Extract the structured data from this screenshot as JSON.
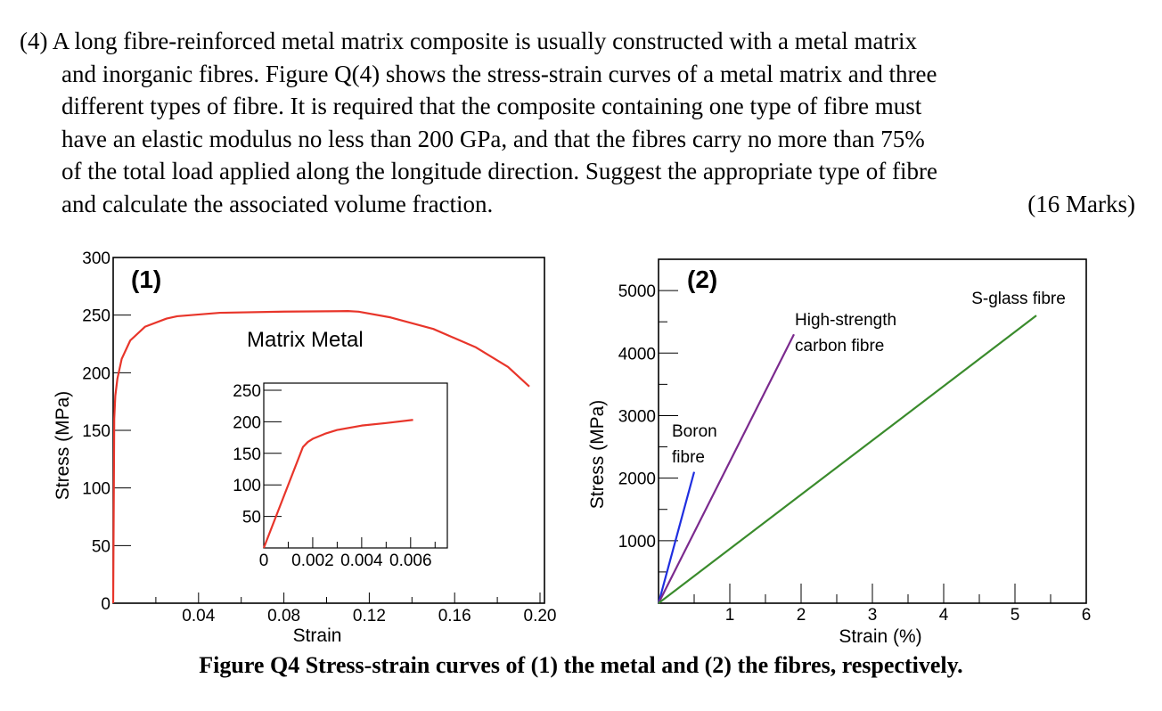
{
  "question": {
    "lines": [
      "(4) A long fibre-reinforced metal matrix composite is usually constructed with a metal matrix",
      "and inorganic fibres. Figure Q(4) shows the stress-strain curves of a metal matrix and three",
      "different types of fibre. It is required that the composite containing one type of fibre must",
      "have an elastic modulus no less than 200 GPa, and that the fibres carry no more than 75%",
      "of the total load applied along the longitude direction. Suggest the appropriate type of fibre",
      "and calculate the associated volume fraction."
    ],
    "marks": "(16 Marks)"
  },
  "figure_caption": "Figure Q4 Stress-strain curves of (1) the metal and (2) the fibres, respectively.",
  "chart_data": [
    {
      "type": "line",
      "panel_label": "(1)",
      "title": "",
      "xlabel": "Strain",
      "ylabel": "Stress (MPa)",
      "xlim": [
        0,
        0.21
      ],
      "ylim": [
        0,
        300
      ],
      "xticks_labeled": [
        "0.04",
        "0.08",
        "0.12",
        "0.16",
        "0.20"
      ],
      "yticks_labeled": [
        "0",
        "50",
        "100",
        "150",
        "200",
        "250",
        "300"
      ],
      "series": [
        {
          "name": "Matrix Metal",
          "color": "#e8352a",
          "x": [
            0,
            0.0005,
            0.001,
            0.002,
            0.004,
            0.008,
            0.015,
            0.025,
            0.03,
            0.05,
            0.08,
            0.11,
            0.115,
            0.13,
            0.15,
            0.17,
            0.185,
            0.195
          ],
          "y": [
            0,
            160,
            180,
            195,
            212,
            228,
            240,
            247,
            249,
            252,
            253,
            253.5,
            253,
            248,
            238,
            222,
            205,
            188
          ]
        }
      ],
      "inset": {
        "xlim": [
          0,
          0.0075
        ],
        "ylim": [
          0,
          250
        ],
        "xticks_labeled": [
          "0",
          "0.002",
          "0.004",
          "0.006"
        ],
        "yticks_labeled": [
          "50",
          "100",
          "150",
          "200",
          "250"
        ],
        "series": [
          {
            "color": "#e8352a",
            "x": [
              0,
              0.0016,
              0.0018,
              0.002,
              0.0025,
              0.003,
              0.004,
              0.005,
              0.0061
            ],
            "y": [
              0,
              160,
              168,
              173,
              181,
              187,
              194,
              198,
              203
            ]
          }
        ]
      }
    },
    {
      "type": "line",
      "panel_label": "(2)",
      "title": "",
      "xlabel": "Strain (%)",
      "ylabel": "Stress (MPa)",
      "xlim": [
        0,
        6
      ],
      "ylim": [
        0,
        5500
      ],
      "xticks_labeled": [
        "1",
        "2",
        "3",
        "4",
        "5",
        "6"
      ],
      "yticks_labeled": [
        "1000",
        "2000",
        "3000",
        "4000",
        "5000"
      ],
      "series": [
        {
          "name": "Boron fibre",
          "color": "#1f2ee0",
          "x": [
            0,
            0.5
          ],
          "y": [
            0,
            2100
          ]
        },
        {
          "name": "High-strength carbon fibre",
          "color": "#7b2a8e",
          "x": [
            0,
            1.9
          ],
          "y": [
            0,
            4300
          ]
        },
        {
          "name": "S-glass fibre",
          "color": "#3a8b2c",
          "x": [
            0,
            5.3
          ],
          "y": [
            0,
            4600
          ]
        }
      ],
      "annotations": [
        {
          "text": "Boron",
          "attach": "Boron fibre"
        },
        {
          "text": "fibre",
          "attach": "Boron fibre"
        },
        {
          "text": "High-strength",
          "attach": "High-strength carbon fibre"
        },
        {
          "text": "carbon fibre",
          "attach": "High-strength carbon fibre"
        },
        {
          "text": "S-glass fibre",
          "attach": "S-glass fibre"
        }
      ]
    }
  ]
}
